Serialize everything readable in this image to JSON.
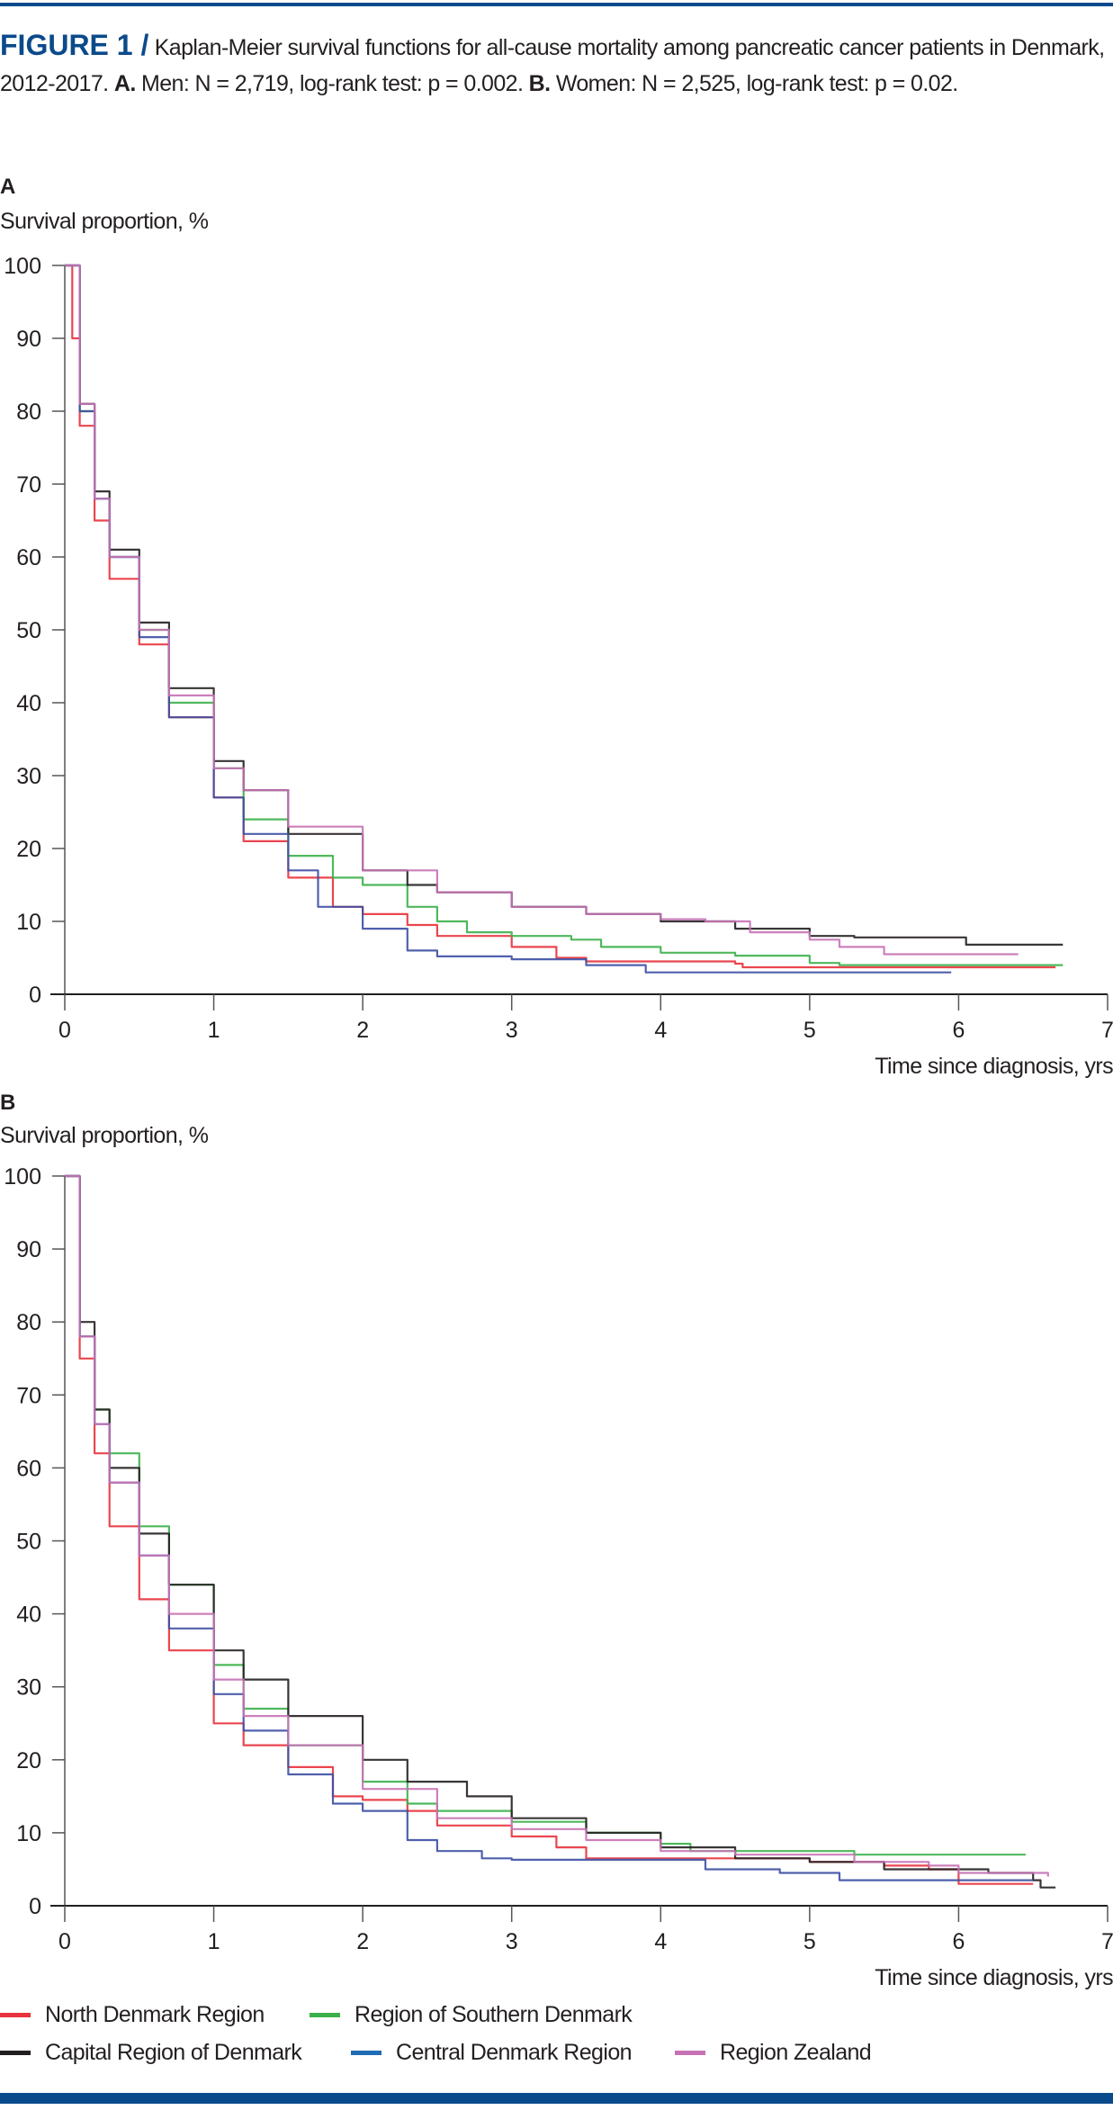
{
  "caption": {
    "figure_label": "FIGURE 1 /",
    "text_1": " Kaplan-Meier survival functions for all-cause mortality among pancreatic cancer patients in Denmark, 2012-2017. ",
    "a_label": "A.",
    "text_a": " Men: N = 2,719, log-rank test: p = 0.002. ",
    "b_label": "B.",
    "text_b": " Women: N = 2,525, log-rank test: p = 0.02."
  },
  "colors": {
    "brand": "#0b4a8b",
    "North Denmark Region": "#e8323c",
    "Region of Southern Denmark": "#3cb04a",
    "Capital Region of Denmark": "#231f20",
    "Central Denmark Region": "#3d4fa3",
    "Region Zealand": "#c772b5"
  },
  "legend": [
    {
      "name": "North Denmark Region",
      "color": "#e8323c"
    },
    {
      "name": "Region of Southern Denmark",
      "color": "#3cb04a"
    },
    {
      "name": "Capital Region of Denmark",
      "color": "#231f20"
    },
    {
      "name": "Central Denmark Region",
      "color": "#1f6bb5"
    },
    {
      "name": "Region Zealand",
      "color": "#c772b5"
    }
  ],
  "chart_data": [
    {
      "panel": "A",
      "type": "line",
      "step": true,
      "ylabel": "Survival proportion, %",
      "xlabel": "Time since diagnosis, yrs",
      "xlim": [
        0,
        7
      ],
      "ylim": [
        0,
        100
      ],
      "xticks": [
        "0",
        "1",
        "2",
        "3",
        "4",
        "5",
        "6",
        "7"
      ],
      "yticks": [
        "0",
        "10",
        "20",
        "30",
        "40",
        "50",
        "60",
        "70",
        "80",
        "90",
        "100"
      ],
      "grid": false,
      "series": [
        {
          "name": "North Denmark Region",
          "points": [
            [
              0,
              100
            ],
            [
              0.05,
              90
            ],
            [
              0.1,
              78
            ],
            [
              0.2,
              65
            ],
            [
              0.3,
              57
            ],
            [
              0.5,
              48
            ],
            [
              0.7,
              38
            ],
            [
              1,
              27
            ],
            [
              1.2,
              21
            ],
            [
              1.5,
              16
            ],
            [
              1.8,
              12
            ],
            [
              2,
              11
            ],
            [
              2.3,
              9.5
            ],
            [
              2.5,
              8
            ],
            [
              3,
              6.5
            ],
            [
              3.3,
              5
            ],
            [
              3.5,
              4.5
            ],
            [
              4.5,
              4.2
            ],
            [
              4.55,
              3.7
            ],
            [
              6.65,
              3.7
            ]
          ]
        },
        {
          "name": "Region of Southern Denmark",
          "points": [
            [
              0,
              100
            ],
            [
              0.1,
              80
            ],
            [
              0.2,
              68
            ],
            [
              0.3,
              60
            ],
            [
              0.5,
              50
            ],
            [
              0.7,
              40
            ],
            [
              1,
              31
            ],
            [
              1.2,
              24
            ],
            [
              1.5,
              19
            ],
            [
              1.8,
              16
            ],
            [
              2,
              15
            ],
            [
              2.3,
              12
            ],
            [
              2.5,
              10
            ],
            [
              2.7,
              8.5
            ],
            [
              3,
              8
            ],
            [
              3.4,
              7.5
            ],
            [
              3.6,
              6.5
            ],
            [
              4,
              5.7
            ],
            [
              4.5,
              5.3
            ],
            [
              5,
              4.3
            ],
            [
              5.2,
              4
            ],
            [
              6.7,
              4
            ]
          ]
        },
        {
          "name": "Capital Region of Denmark",
          "points": [
            [
              0,
              100
            ],
            [
              0.1,
              81
            ],
            [
              0.2,
              69
            ],
            [
              0.3,
              61
            ],
            [
              0.5,
              51
            ],
            [
              0.7,
              42
            ],
            [
              1,
              32
            ],
            [
              1.2,
              28
            ],
            [
              1.5,
              22
            ],
            [
              2,
              17
            ],
            [
              2.3,
              15
            ],
            [
              2.5,
              14
            ],
            [
              3,
              12
            ],
            [
              3.5,
              11
            ],
            [
              4,
              10
            ],
            [
              4.5,
              9
            ],
            [
              5,
              8
            ],
            [
              5.3,
              7.8
            ],
            [
              6,
              7.8
            ],
            [
              6.05,
              6.8
            ],
            [
              6.7,
              6.8
            ]
          ]
        },
        {
          "name": "Central Denmark Region",
          "points": [
            [
              0,
              100
            ],
            [
              0.1,
              80
            ],
            [
              0.2,
              68
            ],
            [
              0.3,
              60
            ],
            [
              0.5,
              49
            ],
            [
              0.7,
              38
            ],
            [
              1,
              27
            ],
            [
              1.2,
              22
            ],
            [
              1.5,
              17
            ],
            [
              1.7,
              12
            ],
            [
              2,
              9
            ],
            [
              2.3,
              6
            ],
            [
              2.5,
              5.2
            ],
            [
              3,
              4.8
            ],
            [
              3.5,
              4
            ],
            [
              3.9,
              3
            ],
            [
              5.95,
              3
            ]
          ]
        },
        {
          "name": "Region Zealand",
          "points": [
            [
              0,
              100
            ],
            [
              0.1,
              81
            ],
            [
              0.2,
              68
            ],
            [
              0.3,
              60
            ],
            [
              0.5,
              50
            ],
            [
              0.7,
              41
            ],
            [
              1,
              31
            ],
            [
              1.2,
              28
            ],
            [
              1.5,
              23
            ],
            [
              2,
              17
            ],
            [
              2.5,
              14
            ],
            [
              3,
              12
            ],
            [
              3.5,
              11
            ],
            [
              4,
              10.3
            ],
            [
              4.3,
              10
            ],
            [
              4.6,
              8.5
            ],
            [
              5,
              7.5
            ],
            [
              5.2,
              6.5
            ],
            [
              5.5,
              5.5
            ],
            [
              6.4,
              5.5
            ]
          ]
        }
      ]
    },
    {
      "panel": "B",
      "type": "line",
      "step": true,
      "ylabel": "Survival proportion, %",
      "xlabel": "Time since diagnosis, yrs",
      "xlim": [
        0,
        7
      ],
      "ylim": [
        0,
        100
      ],
      "xticks": [
        "0",
        "1",
        "2",
        "3",
        "4",
        "5",
        "6",
        "7"
      ],
      "yticks": [
        "0",
        "10",
        "20",
        "30",
        "40",
        "50",
        "60",
        "70",
        "80",
        "90",
        "100"
      ],
      "grid": false,
      "series": [
        {
          "name": "North Denmark Region",
          "points": [
            [
              0,
              100
            ],
            [
              0.1,
              75
            ],
            [
              0.2,
              62
            ],
            [
              0.3,
              52
            ],
            [
              0.5,
              42
            ],
            [
              0.7,
              35
            ],
            [
              1,
              25
            ],
            [
              1.2,
              22
            ],
            [
              1.5,
              19
            ],
            [
              1.8,
              15
            ],
            [
              2,
              14.5
            ],
            [
              2.3,
              13
            ],
            [
              2.5,
              11
            ],
            [
              3,
              9.5
            ],
            [
              3.3,
              8
            ],
            [
              3.5,
              6.5
            ],
            [
              4,
              6.5
            ],
            [
              5,
              6
            ],
            [
              5.5,
              5.5
            ],
            [
              5.8,
              5
            ],
            [
              6,
              3
            ],
            [
              6.5,
              3
            ]
          ]
        },
        {
          "name": "Region of Southern Denmark",
          "points": [
            [
              0,
              100
            ],
            [
              0.1,
              78
            ],
            [
              0.2,
              68
            ],
            [
              0.3,
              62
            ],
            [
              0.5,
              52
            ],
            [
              0.7,
              44
            ],
            [
              1,
              33
            ],
            [
              1.2,
              27
            ],
            [
              1.5,
              22
            ],
            [
              2,
              17
            ],
            [
              2.3,
              14
            ],
            [
              2.5,
              13
            ],
            [
              3,
              11.5
            ],
            [
              3.5,
              10
            ],
            [
              4,
              8.5
            ],
            [
              4.2,
              7.5
            ],
            [
              5,
              7.5
            ],
            [
              5.3,
              7
            ],
            [
              6.45,
              7
            ]
          ]
        },
        {
          "name": "Capital Region of Denmark",
          "points": [
            [
              0,
              100
            ],
            [
              0.1,
              80
            ],
            [
              0.2,
              68
            ],
            [
              0.3,
              60
            ],
            [
              0.5,
              51
            ],
            [
              0.7,
              44
            ],
            [
              1,
              35
            ],
            [
              1.2,
              31
            ],
            [
              1.5,
              26
            ],
            [
              2,
              20
            ],
            [
              2.3,
              17
            ],
            [
              2.7,
              15
            ],
            [
              3,
              12
            ],
            [
              3.5,
              10
            ],
            [
              4,
              8
            ],
            [
              4.5,
              6.5
            ],
            [
              5,
              6
            ],
            [
              5.5,
              5
            ],
            [
              6.2,
              4.5
            ],
            [
              6.5,
              3.5
            ],
            [
              6.55,
              2.5
            ],
            [
              6.65,
              2.5
            ]
          ]
        },
        {
          "name": "Central Denmark Region",
          "points": [
            [
              0,
              100
            ],
            [
              0.1,
              78
            ],
            [
              0.2,
              66
            ],
            [
              0.3,
              58
            ],
            [
              0.5,
              48
            ],
            [
              0.7,
              38
            ],
            [
              1,
              29
            ],
            [
              1.2,
              24
            ],
            [
              1.5,
              18
            ],
            [
              1.8,
              14
            ],
            [
              2,
              13
            ],
            [
              2.3,
              9
            ],
            [
              2.5,
              7.5
            ],
            [
              2.8,
              6.5
            ],
            [
              3,
              6.3
            ],
            [
              4,
              6.3
            ],
            [
              4.3,
              5
            ],
            [
              4.8,
              4.5
            ],
            [
              5.2,
              3.5
            ],
            [
              6.5,
              3.5
            ]
          ]
        },
        {
          "name": "Region Zealand",
          "points": [
            [
              0,
              100
            ],
            [
              0.1,
              78
            ],
            [
              0.2,
              66
            ],
            [
              0.3,
              58
            ],
            [
              0.5,
              48
            ],
            [
              0.7,
              40
            ],
            [
              1,
              31
            ],
            [
              1.2,
              26
            ],
            [
              1.5,
              22
            ],
            [
              2,
              16
            ],
            [
              2.5,
              12
            ],
            [
              3,
              10.5
            ],
            [
              3.5,
              9
            ],
            [
              4,
              7.5
            ],
            [
              4.5,
              7
            ],
            [
              5,
              7
            ],
            [
              5.3,
              6
            ],
            [
              5.8,
              5.5
            ],
            [
              6,
              4.5
            ],
            [
              6.6,
              4
            ]
          ]
        }
      ]
    }
  ]
}
